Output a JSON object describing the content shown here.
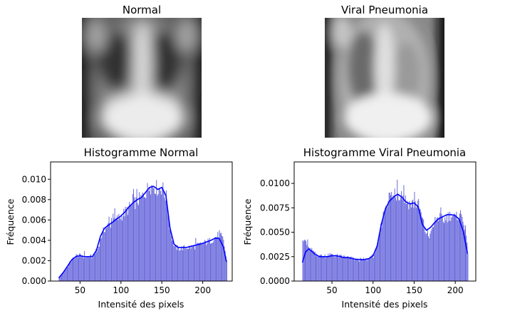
{
  "images": [
    {
      "title": "Normal",
      "variant": "normal"
    },
    {
      "title": "Viral Pneumonia",
      "variant": "pneumonia"
    }
  ],
  "colors": {
    "bars": "#6a6adc",
    "kde": "#0000ff"
  },
  "chart_data": [
    {
      "type": "bar",
      "title": "Histogramme Normal",
      "xlabel": "Intensité des pixels",
      "ylabel": "Fréquence",
      "xlim": [
        14,
        236
      ],
      "ylim": [
        0,
        0.0117
      ],
      "xticks": [
        50,
        100,
        150,
        200
      ],
      "yticks": [
        0.0,
        0.002,
        0.004,
        0.006,
        0.008,
        0.01
      ],
      "ytick_labels": [
        "0.000",
        "0.002",
        "0.004",
        "0.006",
        "0.008",
        "0.010"
      ],
      "grid": false,
      "bins": [
        24,
        229
      ],
      "density_profile": [
        [
          24,
          0.0004
        ],
        [
          30,
          0.0009
        ],
        [
          35,
          0.0015
        ],
        [
          40,
          0.0021
        ],
        [
          45,
          0.0025
        ],
        [
          50,
          0.0025
        ],
        [
          55,
          0.0024
        ],
        [
          60,
          0.0024
        ],
        [
          65,
          0.0024
        ],
        [
          70,
          0.0028
        ],
        [
          75,
          0.0043
        ],
        [
          80,
          0.0052
        ],
        [
          85,
          0.0055
        ],
        [
          90,
          0.0058
        ],
        [
          95,
          0.0061
        ],
        [
          100,
          0.0064
        ],
        [
          105,
          0.0068
        ],
        [
          110,
          0.0072
        ],
        [
          115,
          0.0076
        ],
        [
          120,
          0.0079
        ],
        [
          125,
          0.0082
        ],
        [
          130,
          0.0088
        ],
        [
          135,
          0.0093
        ],
        [
          140,
          0.0094
        ],
        [
          145,
          0.009
        ],
        [
          150,
          0.0092
        ],
        [
          155,
          0.0082
        ],
        [
          160,
          0.0048
        ],
        [
          165,
          0.0034
        ],
        [
          170,
          0.0032
        ],
        [
          180,
          0.0033
        ],
        [
          190,
          0.0034
        ],
        [
          200,
          0.0037
        ],
        [
          210,
          0.004
        ],
        [
          215,
          0.0043
        ],
        [
          220,
          0.0046
        ],
        [
          225,
          0.004
        ],
        [
          229,
          0.0019
        ]
      ],
      "kde": [
        [
          24,
          0.0003
        ],
        [
          30,
          0.0009
        ],
        [
          35,
          0.0015
        ],
        [
          40,
          0.0021
        ],
        [
          45,
          0.0024
        ],
        [
          50,
          0.0025
        ],
        [
          55,
          0.0024
        ],
        [
          60,
          0.0024
        ],
        [
          65,
          0.0024
        ],
        [
          70,
          0.003
        ],
        [
          75,
          0.0044
        ],
        [
          80,
          0.0052
        ],
        [
          85,
          0.0055
        ],
        [
          90,
          0.0058
        ],
        [
          95,
          0.0061
        ],
        [
          100,
          0.0064
        ],
        [
          105,
          0.0068
        ],
        [
          110,
          0.0073
        ],
        [
          115,
          0.0077
        ],
        [
          120,
          0.008
        ],
        [
          125,
          0.0082
        ],
        [
          130,
          0.0087
        ],
        [
          135,
          0.0092
        ],
        [
          140,
          0.0093
        ],
        [
          145,
          0.009
        ],
        [
          150,
          0.0092
        ],
        [
          155,
          0.0084
        ],
        [
          160,
          0.0052
        ],
        [
          165,
          0.0036
        ],
        [
          170,
          0.0033
        ],
        [
          180,
          0.0033
        ],
        [
          190,
          0.0035
        ],
        [
          200,
          0.0037
        ],
        [
          210,
          0.004
        ],
        [
          215,
          0.0042
        ],
        [
          220,
          0.0042
        ],
        [
          225,
          0.0034
        ],
        [
          229,
          0.0019
        ]
      ]
    },
    {
      "type": "bar",
      "title": "Histogramme Viral Pneumonia",
      "xlabel": "Intensité des pixels",
      "ylabel": "Fréquence",
      "xlim": [
        4,
        225
      ],
      "ylim": [
        0,
        0.0122
      ],
      "xticks": [
        50,
        100,
        150,
        200
      ],
      "yticks": [
        0.0,
        0.0025,
        0.005,
        0.0075,
        0.01
      ],
      "ytick_labels": [
        "0.0000",
        "0.0025",
        "0.0050",
        "0.0075",
        "0.0100"
      ],
      "grid": false,
      "bins": [
        14,
        215
      ],
      "density_profile": [
        [
          14,
          0.004
        ],
        [
          18,
          0.0038
        ],
        [
          22,
          0.0034
        ],
        [
          26,
          0.0031
        ],
        [
          30,
          0.0028
        ],
        [
          35,
          0.0026
        ],
        [
          40,
          0.0025
        ],
        [
          45,
          0.0026
        ],
        [
          50,
          0.0027
        ],
        [
          55,
          0.0026
        ],
        [
          60,
          0.0025
        ],
        [
          65,
          0.0025
        ],
        [
          70,
          0.0024
        ],
        [
          75,
          0.0023
        ],
        [
          80,
          0.0022
        ],
        [
          85,
          0.0022
        ],
        [
          90,
          0.0022
        ],
        [
          95,
          0.0023
        ],
        [
          100,
          0.0026
        ],
        [
          105,
          0.0035
        ],
        [
          110,
          0.006
        ],
        [
          115,
          0.0078
        ],
        [
          120,
          0.0088
        ],
        [
          125,
          0.0086
        ],
        [
          130,
          0.009
        ],
        [
          135,
          0.0089
        ],
        [
          140,
          0.0082
        ],
        [
          145,
          0.0079
        ],
        [
          150,
          0.008
        ],
        [
          155,
          0.0078
        ],
        [
          160,
          0.0062
        ],
        [
          165,
          0.0046
        ],
        [
          170,
          0.0047
        ],
        [
          175,
          0.0062
        ],
        [
          180,
          0.0066
        ],
        [
          185,
          0.0062
        ],
        [
          190,
          0.0066
        ],
        [
          195,
          0.0068
        ],
        [
          200,
          0.0064
        ],
        [
          205,
          0.007
        ],
        [
          210,
          0.0062
        ],
        [
          215,
          0.003
        ]
      ],
      "kde": [
        [
          14,
          0.0019
        ],
        [
          18,
          0.003
        ],
        [
          22,
          0.0033
        ],
        [
          26,
          0.003
        ],
        [
          30,
          0.0027
        ],
        [
          35,
          0.0025
        ],
        [
          40,
          0.0025
        ],
        [
          45,
          0.0025
        ],
        [
          50,
          0.0026
        ],
        [
          55,
          0.0026
        ],
        [
          60,
          0.0025
        ],
        [
          65,
          0.0024
        ],
        [
          70,
          0.0024
        ],
        [
          75,
          0.0023
        ],
        [
          80,
          0.0022
        ],
        [
          85,
          0.0022
        ],
        [
          90,
          0.0022
        ],
        [
          95,
          0.0023
        ],
        [
          100,
          0.0026
        ],
        [
          105,
          0.0036
        ],
        [
          110,
          0.0058
        ],
        [
          115,
          0.0074
        ],
        [
          120,
          0.0082
        ],
        [
          125,
          0.0086
        ],
        [
          130,
          0.0089
        ],
        [
          135,
          0.0086
        ],
        [
          140,
          0.0081
        ],
        [
          145,
          0.0079
        ],
        [
          150,
          0.008
        ],
        [
          155,
          0.0076
        ],
        [
          160,
          0.0058
        ],
        [
          165,
          0.0052
        ],
        [
          170,
          0.0055
        ],
        [
          175,
          0.006
        ],
        [
          180,
          0.0064
        ],
        [
          185,
          0.0066
        ],
        [
          190,
          0.0068
        ],
        [
          195,
          0.0068
        ],
        [
          200,
          0.0067
        ],
        [
          205,
          0.0063
        ],
        [
          210,
          0.005
        ],
        [
          215,
          0.0028
        ]
      ]
    }
  ]
}
